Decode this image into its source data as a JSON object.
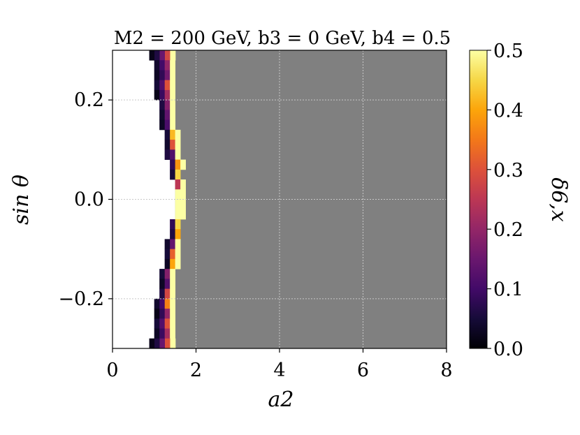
{
  "chart_data": {
    "type": "heatmap",
    "title": "M2 = 200 GeV, b3 = 0 GeV, b4 = 0.5",
    "xlabel": "a2",
    "ylabel": "sin θ",
    "colorbar_label": "δ6,x",
    "colormap": "inferno",
    "xlim": [
      0,
      8
    ],
    "ylim": [
      -0.3,
      0.3
    ],
    "xticks": [
      "0",
      "2",
      "4",
      "6",
      "8"
    ],
    "yticks": [
      "−0.2",
      "0.0",
      "0.2"
    ],
    "colorbar_range": [
      0.0,
      0.5
    ],
    "colorbar_ticks": [
      "0.0",
      "0.1",
      "0.2",
      "0.3",
      "0.4",
      "0.5"
    ],
    "grid": true,
    "background_color": "#808080",
    "excluded_region_color": "#ffffff",
    "cell_size": {
      "da2": 0.125,
      "dsin": 0.02
    },
    "boundary_rows": [
      {
        "y": 0.29,
        "x_start": 0.88,
        "values": [
          0.02,
          0.06,
          0.15,
          0.28,
          0.5
        ]
      },
      {
        "y": 0.27,
        "x_start": 1.0,
        "values": [
          0.04,
          0.1,
          0.2,
          0.5
        ]
      },
      {
        "y": 0.25,
        "x_start": 1.0,
        "values": [
          0.03,
          0.08,
          0.16,
          0.5
        ]
      },
      {
        "y": 0.23,
        "x_start": 1.0,
        "values": [
          0.05,
          0.12,
          0.3,
          0.5
        ]
      },
      {
        "y": 0.21,
        "x_start": 1.0,
        "values": [
          0.02,
          0.09,
          0.22,
          0.5
        ]
      },
      {
        "y": 0.19,
        "x_start": 1.125,
        "values": [
          0.06,
          0.18,
          0.5
        ]
      },
      {
        "y": 0.17,
        "x_start": 1.125,
        "values": [
          0.04,
          0.14,
          0.5
        ]
      },
      {
        "y": 0.15,
        "x_start": 1.125,
        "values": [
          0.03,
          0.11,
          0.5
        ]
      },
      {
        "y": 0.13,
        "x_start": 1.25,
        "values": [
          0.05,
          0.42,
          0.5
        ]
      },
      {
        "y": 0.11,
        "x_start": 1.25,
        "values": [
          0.04,
          0.3,
          0.5
        ]
      },
      {
        "y": 0.09,
        "x_start": 1.25,
        "values": [
          0.06,
          0.12,
          0.5
        ]
      },
      {
        "y": 0.07,
        "x_start": 1.375,
        "values": [
          0.08,
          0.38,
          0.5
        ]
      },
      {
        "y": 0.05,
        "x_start": 1.375,
        "values": [
          0.05,
          0.45
        ]
      },
      {
        "y": 0.03,
        "x_start": 1.5,
        "values": [
          0.25,
          0.5
        ]
      },
      {
        "y": 0.01,
        "x_start": 1.5,
        "values": [
          0.5,
          0.5
        ]
      },
      {
        "y": -0.01,
        "x_start": 1.5,
        "values": [
          0.5,
          0.5
        ]
      },
      {
        "y": -0.03,
        "x_start": 1.5,
        "values": [
          0.5,
          0.5
        ]
      },
      {
        "y": -0.05,
        "x_start": 1.375,
        "values": [
          0.08,
          0.45
        ]
      },
      {
        "y": -0.07,
        "x_start": 1.375,
        "values": [
          0.06,
          0.4
        ]
      },
      {
        "y": -0.09,
        "x_start": 1.25,
        "values": [
          0.04,
          0.14,
          0.5
        ]
      },
      {
        "y": -0.11,
        "x_start": 1.25,
        "values": [
          0.05,
          0.32,
          0.5
        ]
      },
      {
        "y": -0.13,
        "x_start": 1.25,
        "values": [
          0.03,
          0.4,
          0.5
        ]
      },
      {
        "y": -0.15,
        "x_start": 1.125,
        "values": [
          0.05,
          0.18,
          0.5
        ]
      },
      {
        "y": -0.17,
        "x_start": 1.125,
        "values": [
          0.03,
          0.12,
          0.5
        ]
      },
      {
        "y": -0.19,
        "x_start": 1.125,
        "values": [
          0.06,
          0.28,
          0.5
        ]
      },
      {
        "y": -0.21,
        "x_start": 1.0,
        "values": [
          0.04,
          0.1,
          0.36,
          0.5
        ]
      },
      {
        "y": -0.23,
        "x_start": 1.0,
        "values": [
          0.02,
          0.08,
          0.2,
          0.5
        ]
      },
      {
        "y": -0.25,
        "x_start": 1.0,
        "values": [
          0.05,
          0.12,
          0.3,
          0.5
        ]
      },
      {
        "y": -0.27,
        "x_start": 1.0,
        "values": [
          0.03,
          0.09,
          0.22,
          0.5
        ]
      },
      {
        "y": -0.29,
        "x_start": 0.88,
        "values": [
          0.02,
          0.06,
          0.15,
          0.3,
          0.5
        ]
      }
    ]
  }
}
